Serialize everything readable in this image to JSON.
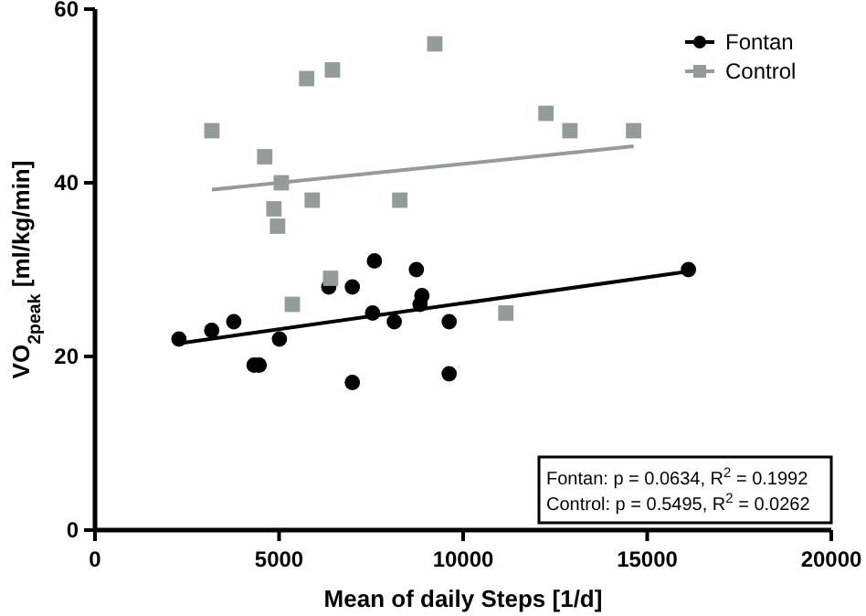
{
  "chart_data": {
    "type": "scatter",
    "xlabel": "Mean of daily Steps [1/d]",
    "ylabel": "VO$_{2peak}$ [ml/kg/min]",
    "xlim": [
      0,
      20000
    ],
    "xticks": [
      0,
      5000,
      10000,
      15000,
      20000
    ],
    "ylim": [
      0,
      60
    ],
    "yticks": [
      0,
      20,
      40,
      60
    ],
    "grid": false,
    "legend": "top right",
    "annotations": [
      "Fontan: p = 0.0634, R$^{2}$ = 0.1992",
      "Control: p = 0.5495, R$^{2}$ = 0.0262"
    ],
    "series": [
      {
        "name": "Fontan",
        "marker": "circle",
        "color": "#000000",
        "x": [
          2280,
          3170,
          3770,
          4320,
          4460,
          5010,
          6350,
          6990,
          6990,
          7590,
          7540,
          8130,
          8730,
          8880,
          8830,
          9620,
          9620,
          16120
        ],
        "values": [
          22,
          23,
          24,
          19,
          19,
          22,
          28,
          28,
          17,
          31,
          25,
          24,
          30,
          27,
          26,
          24,
          18,
          30
        ]
      },
      {
        "name": "Control",
        "marker": "square",
        "color": "#939b9b",
        "x": [
          3175,
          4610,
          5060,
          4860,
          4960,
          5750,
          6450,
          5900,
          8280,
          9230,
          6400,
          12250,
          12900,
          14630,
          5360,
          11160
        ],
        "values": [
          46,
          43,
          40,
          37,
          35,
          52,
          53,
          38,
          38,
          56,
          29,
          48,
          46,
          46,
          26,
          25
        ]
      },
      {
        "type": "line",
        "marker": "none",
        "color": "#000000",
        "x": [
          2280,
          16120
        ],
        "values": [
          21.5,
          29.8
        ]
      },
      {
        "type": "line",
        "marker": "none",
        "color": "#939b9b",
        "x": [
          3175,
          14630
        ],
        "values": [
          39.2,
          44.2
        ]
      }
    ]
  }
}
